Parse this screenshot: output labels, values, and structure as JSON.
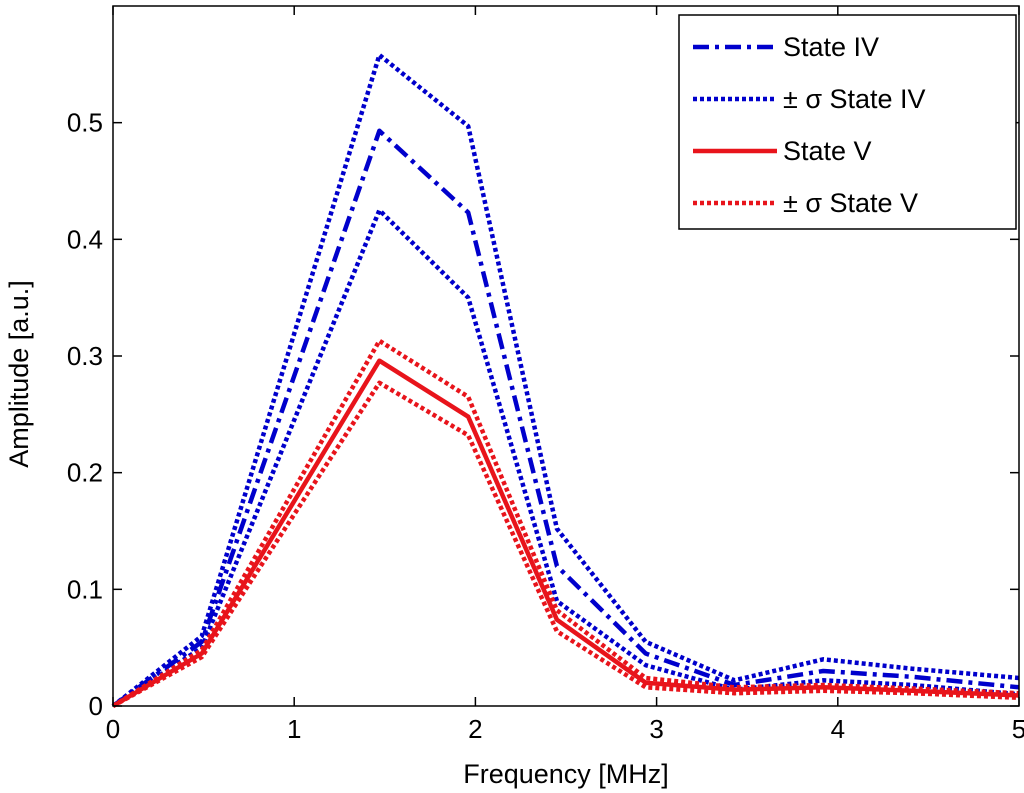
{
  "chart_data": {
    "type": "line",
    "title": "",
    "xlabel": "Frequency [MHz]",
    "ylabel": "Amplitude [a.u.]",
    "xlim": [
      0,
      5
    ],
    "ylim": [
      0,
      0.6
    ],
    "xticks": [
      0,
      1,
      2,
      3,
      4,
      5
    ],
    "xtick_labels": [
      "0",
      "1",
      "2",
      "3",
      "4",
      "5"
    ],
    "yticks": [
      0,
      0.1,
      0.2,
      0.3,
      0.4,
      0.5
    ],
    "ytick_labels": [
      "0",
      "0.1",
      "0.2",
      "0.3",
      "0.4",
      "0.5"
    ],
    "grid": false,
    "legend_position": "top-right",
    "x": [
      0,
      0.49,
      1.47,
      1.96,
      2.45,
      2.94,
      3.43,
      3.92,
      4.41,
      5.0
    ],
    "series": [
      {
        "name": "State IV",
        "style": "dashdot",
        "color": "#0000cc",
        "legend": true,
        "values": [
          0,
          0.055,
          0.493,
          0.423,
          0.12,
          0.045,
          0.018,
          0.03,
          0.025,
          0.016
        ]
      },
      {
        "name": "± σ State IV",
        "style": "dotted",
        "color": "#0000cc",
        "legend": true,
        "values": [
          0,
          0.06,
          0.558,
          0.497,
          0.152,
          0.055,
          0.022,
          0.04,
          0.032,
          0.024
        ]
      },
      {
        "name": "± σ State IV (lower)",
        "style": "dotted",
        "color": "#0000cc",
        "legend": false,
        "values": [
          0,
          0.05,
          0.425,
          0.35,
          0.09,
          0.035,
          0.014,
          0.022,
          0.018,
          0.01
        ]
      },
      {
        "name": "State V",
        "style": "solid",
        "color": "#e8141b",
        "legend": true,
        "values": [
          0,
          0.045,
          0.296,
          0.248,
          0.074,
          0.02,
          0.014,
          0.016,
          0.013,
          0.009
        ]
      },
      {
        "name": "± σ State V",
        "style": "dotted",
        "color": "#e8141b",
        "legend": true,
        "values": [
          0,
          0.048,
          0.313,
          0.265,
          0.082,
          0.024,
          0.016,
          0.018,
          0.015,
          0.011
        ]
      },
      {
        "name": "± σ State V (lower)",
        "style": "dotted",
        "color": "#e8141b",
        "legend": false,
        "values": [
          0,
          0.042,
          0.277,
          0.232,
          0.064,
          0.016,
          0.011,
          0.013,
          0.011,
          0.007
        ]
      }
    ],
    "legend_entries": [
      {
        "label": "State IV",
        "style": "dashdot",
        "color": "#0000cc"
      },
      {
        "label": "± σ State IV",
        "style": "dotted",
        "color": "#0000cc"
      },
      {
        "label": "State V",
        "style": "solid",
        "color": "#e8141b"
      },
      {
        "label": "± σ State V",
        "style": "dotted",
        "color": "#e8141b"
      }
    ]
  }
}
